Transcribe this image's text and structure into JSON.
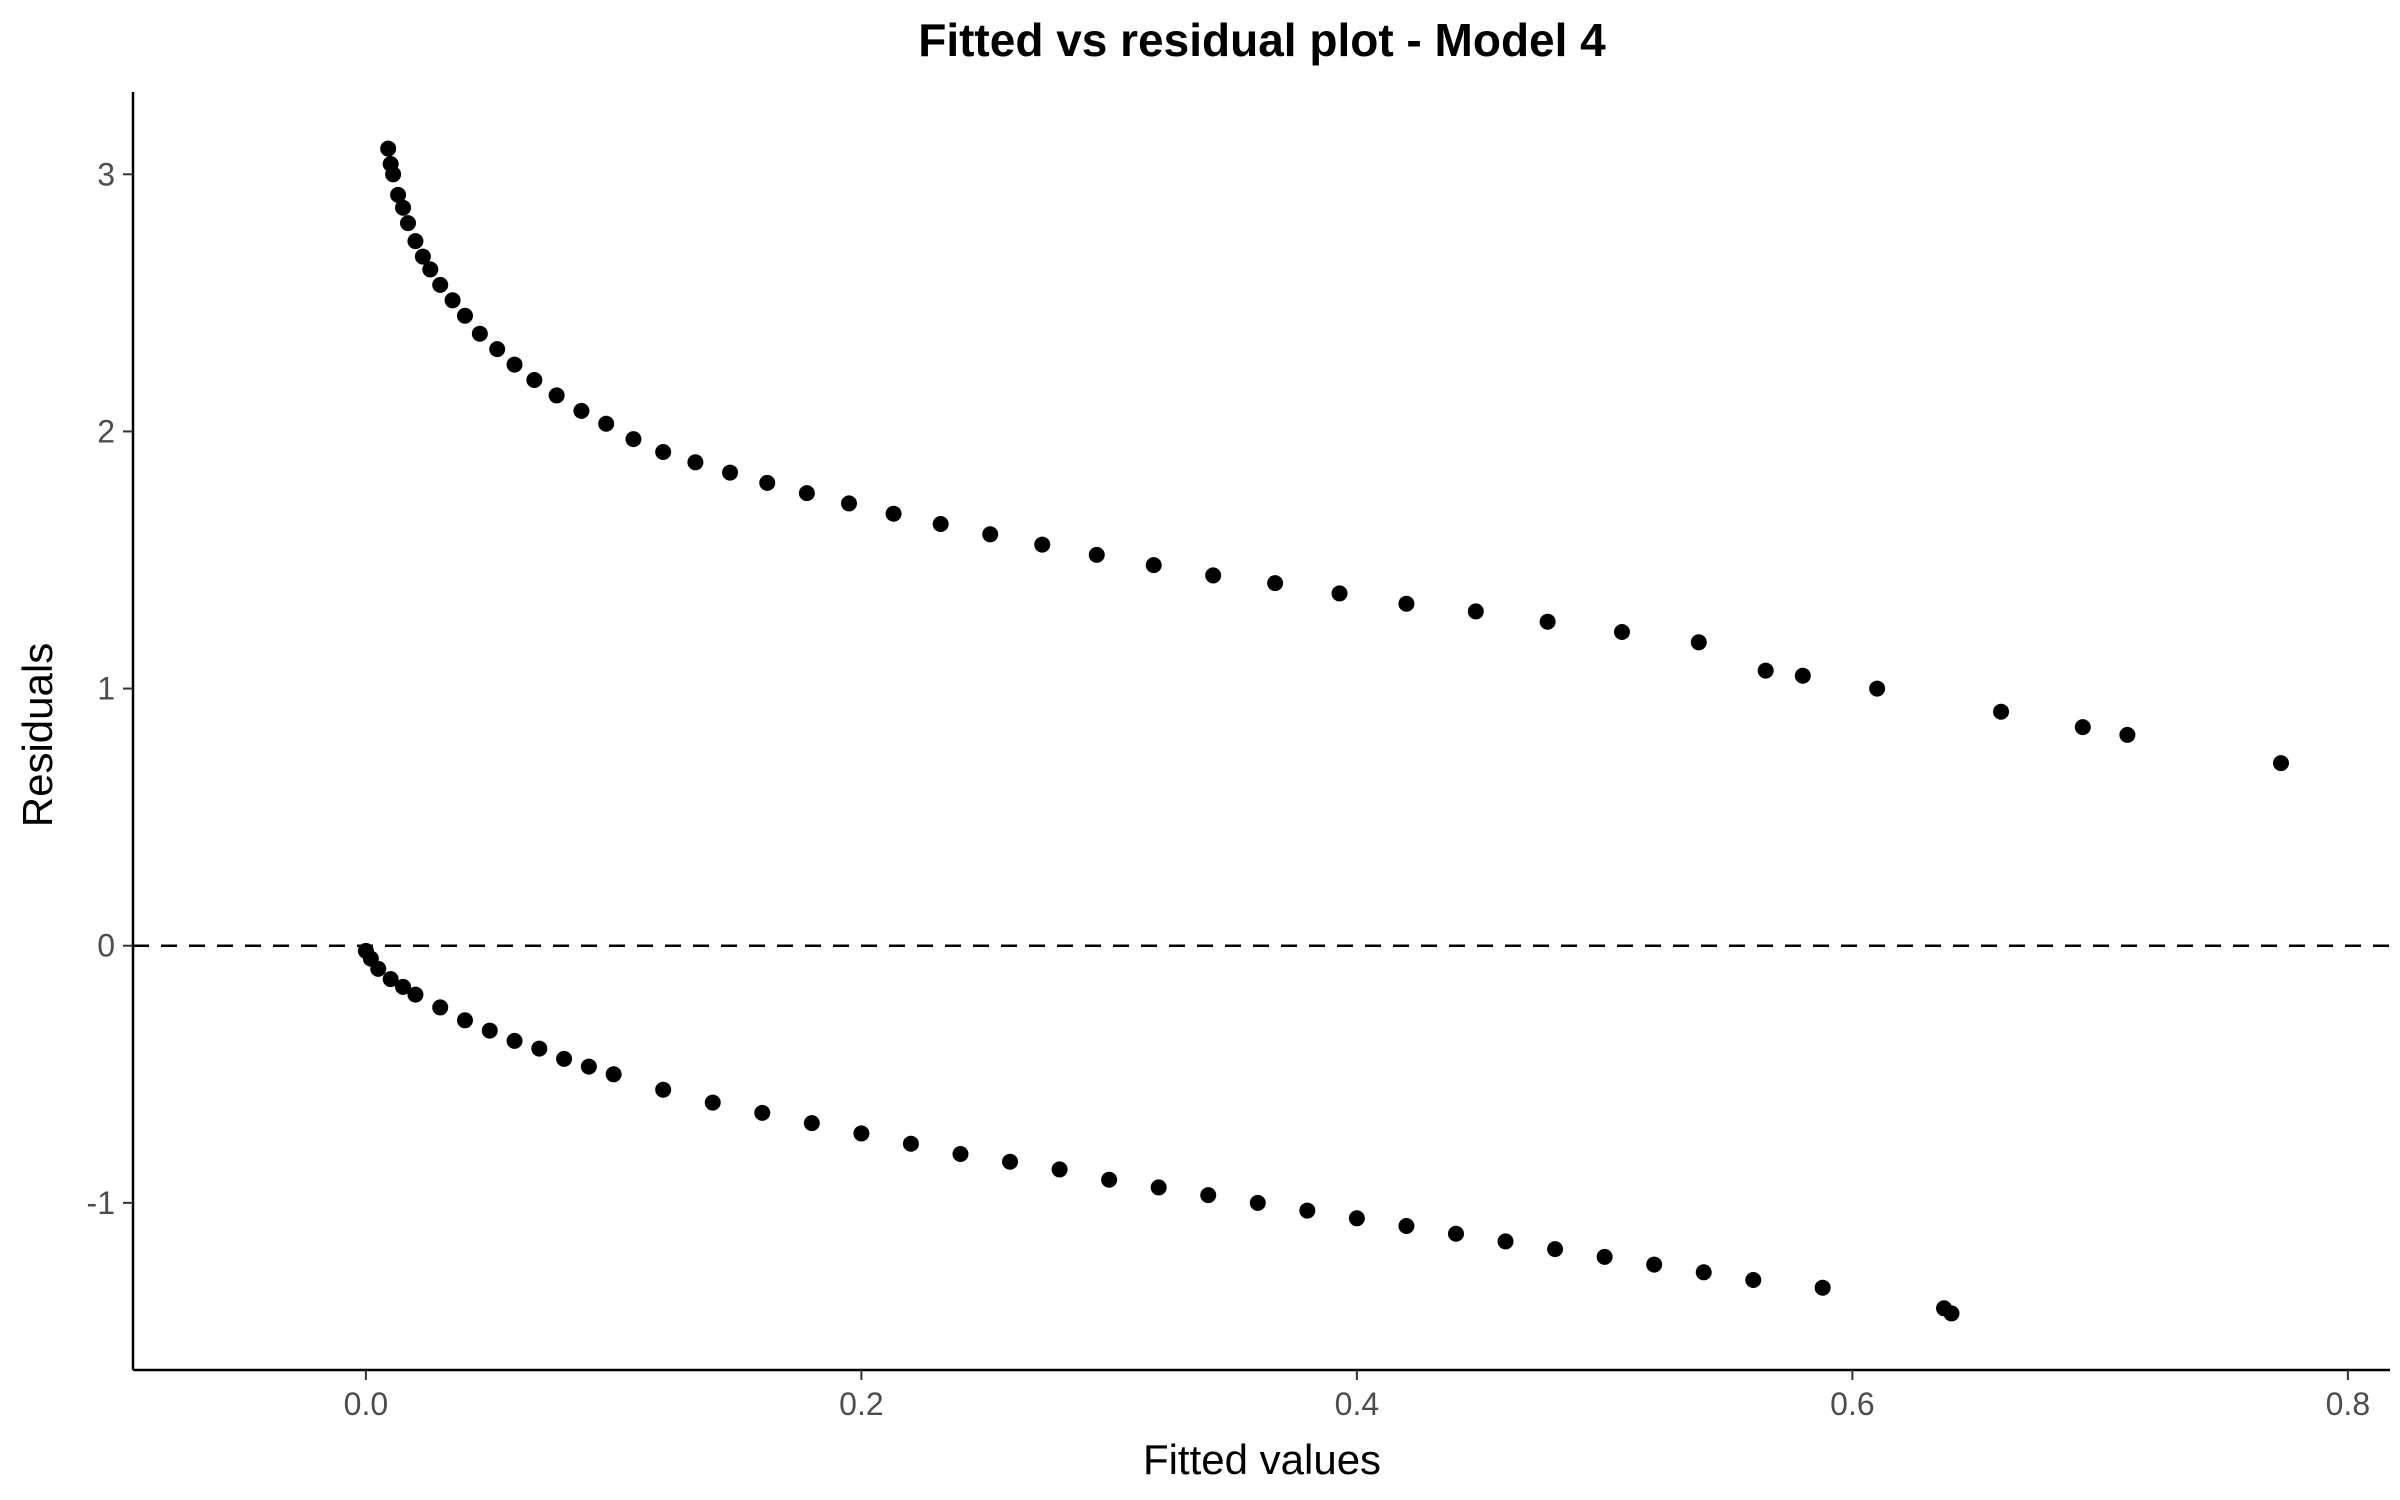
{
  "chart_data": {
    "type": "scatter",
    "title": "Fitted vs residual plot - Model 4",
    "xlabel": "Fitted values",
    "ylabel": "Residuals",
    "xlim": [
      -0.094,
      0.817
    ],
    "ylim": [
      -1.65,
      3.32
    ],
    "xticks": [
      0.0,
      0.2,
      0.4,
      0.6,
      0.8
    ],
    "xtick_labels": [
      "0.0",
      "0.2",
      "0.4",
      "0.6",
      "0.8"
    ],
    "yticks": [
      -1,
      0,
      1,
      2,
      3
    ],
    "ytick_labels": [
      "-1",
      "0",
      "1",
      "2",
      "3"
    ],
    "reference_line": {
      "y": 0,
      "style": "dashed"
    },
    "grid": false,
    "legend": "none",
    "point_color": "#000000",
    "x": [
      0.009,
      0.01,
      0.011,
      0.013,
      0.015,
      0.017,
      0.02,
      0.023,
      0.026,
      0.03,
      0.035,
      0.04,
      0.046,
      0.053,
      0.06,
      0.068,
      0.077,
      0.087,
      0.097,
      0.108,
      0.12,
      0.133,
      0.147,
      0.162,
      0.178,
      0.195,
      0.213,
      0.232,
      0.252,
      0.273,
      0.295,
      0.318,
      0.342,
      0.367,
      0.393,
      0.42,
      0.448,
      0.477,
      0.507,
      0.538,
      0.565,
      0.58,
      0.61,
      0.66,
      0.693,
      0.711,
      0.773,
      0.0,
      0.002,
      0.005,
      0.01,
      0.015,
      0.02,
      0.03,
      0.04,
      0.05,
      0.06,
      0.07,
      0.08,
      0.09,
      0.1,
      0.12,
      0.14,
      0.16,
      0.18,
      0.2,
      0.22,
      0.24,
      0.26,
      0.28,
      0.3,
      0.32,
      0.34,
      0.36,
      0.38,
      0.4,
      0.42,
      0.44,
      0.46,
      0.48,
      0.5,
      0.52,
      0.54,
      0.56,
      0.588,
      0.637,
      0.64
    ],
    "y": [
      3.1,
      3.04,
      3.0,
      2.92,
      2.87,
      2.81,
      2.74,
      2.68,
      2.63,
      2.57,
      2.51,
      2.45,
      2.38,
      2.32,
      2.26,
      2.2,
      2.14,
      2.08,
      2.03,
      1.97,
      1.92,
      1.88,
      1.84,
      1.8,
      1.76,
      1.72,
      1.68,
      1.64,
      1.6,
      1.56,
      1.52,
      1.48,
      1.44,
      1.41,
      1.37,
      1.33,
      1.3,
      1.26,
      1.22,
      1.18,
      1.07,
      1.05,
      1.0,
      0.91,
      0.85,
      0.82,
      0.71,
      -0.02,
      -0.05,
      -0.09,
      -0.13,
      -0.16,
      -0.19,
      -0.24,
      -0.29,
      -0.33,
      -0.37,
      -0.4,
      -0.44,
      -0.47,
      -0.5,
      -0.56,
      -0.61,
      -0.65,
      -0.69,
      -0.73,
      -0.77,
      -0.81,
      -0.84,
      -0.87,
      -0.91,
      -0.94,
      -0.97,
      -1.0,
      -1.03,
      -1.06,
      -1.09,
      -1.12,
      -1.15,
      -1.18,
      -1.21,
      -1.24,
      -1.27,
      -1.3,
      -1.33,
      -1.41,
      -1.43
    ]
  }
}
